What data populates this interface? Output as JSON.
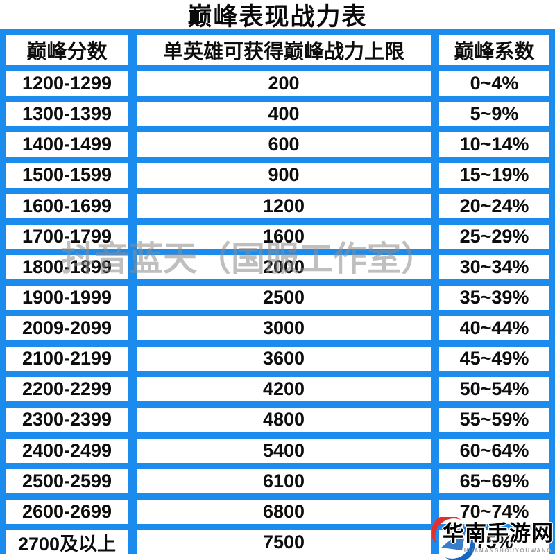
{
  "title": "巅峰表现战力表",
  "table": {
    "columns": [
      "巅峰分数",
      "单英雄可获得巅峰战力上限",
      "巅峰系数"
    ],
    "rows": [
      {
        "score": "1200-1299",
        "power_cap": "200",
        "coefficient": "0~4%"
      },
      {
        "score": "1300-1399",
        "power_cap": "400",
        "coefficient": "5~9%"
      },
      {
        "score": "1400-1499",
        "power_cap": "600",
        "coefficient": "10~14%"
      },
      {
        "score": "1500-1599",
        "power_cap": "900",
        "coefficient": "15~19%"
      },
      {
        "score": "1600-1699",
        "power_cap": "1200",
        "coefficient": "20~24%"
      },
      {
        "score": "1700-1799",
        "power_cap": "1600",
        "coefficient": "25~29%"
      },
      {
        "score": "1800-1899",
        "power_cap": "2000",
        "coefficient": "30~34%"
      },
      {
        "score": "1900-1999",
        "power_cap": "2500",
        "coefficient": "35~39%"
      },
      {
        "score": "2009-2099",
        "power_cap": "3000",
        "coefficient": "40~44%"
      },
      {
        "score": "2100-2199",
        "power_cap": "3600",
        "coefficient": "45~49%"
      },
      {
        "score": "2200-2299",
        "power_cap": "4200",
        "coefficient": "50~54%"
      },
      {
        "score": "2300-2399",
        "power_cap": "4800",
        "coefficient": "55~59%"
      },
      {
        "score": "2400-2499",
        "power_cap": "5400",
        "coefficient": "60~64%"
      },
      {
        "score": "2500-2599",
        "power_cap": "6100",
        "coefficient": "65~69%"
      },
      {
        "score": "2600-2699",
        "power_cap": "6800",
        "coefficient": "70~74%"
      },
      {
        "score": "2700及以上",
        "power_cap": "7500",
        "coefficient": "75%"
      }
    ]
  },
  "watermarks": {
    "center": "抖音蓝天（国服工作室）",
    "corner_name": "华南手游网",
    "corner_sub": "HUANANSHOUYOUWANG"
  },
  "colors": {
    "grid_blue": "#1b8cee",
    "text_black": "#0d0d0d",
    "watermark_gray": "#8c8c8c",
    "logo_red": "#e03030",
    "logo_blue": "#1766c2",
    "logo_yellow": "#f6c419"
  }
}
